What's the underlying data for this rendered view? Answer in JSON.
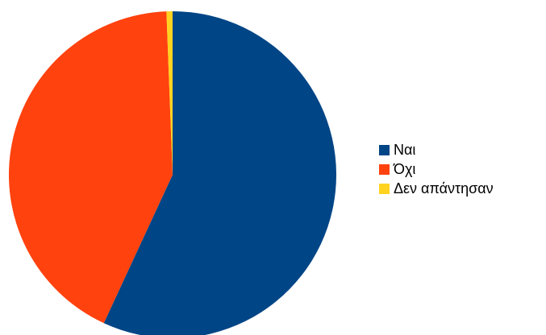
{
  "chart_data": {
    "type": "pie",
    "title": "",
    "slices": [
      {
        "label": "Ναι",
        "value": 56.9,
        "color": "#004586"
      },
      {
        "label": "Όχι",
        "value": 42.5,
        "color": "#ff420e"
      },
      {
        "label": "Δεν απάντησαν",
        "value": 0.6,
        "color": "#ffd320"
      }
    ],
    "legend_position": "right",
    "start_angle_deg": 0,
    "direction": "clockwise"
  }
}
